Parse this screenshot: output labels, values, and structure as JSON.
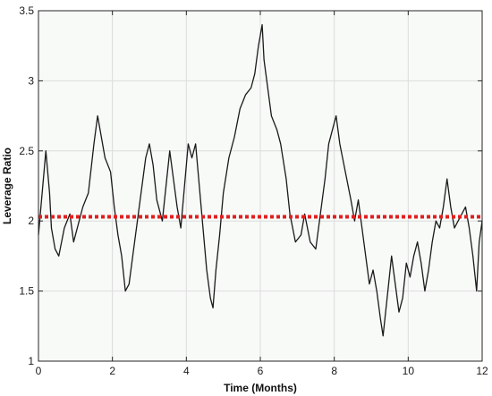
{
  "chart_data": {
    "type": "line",
    "title": "",
    "xlabel": "Time (Months)",
    "ylabel": "Leverage Ratio",
    "xlim": [
      0,
      12
    ],
    "ylim": [
      1,
      3.5
    ],
    "x_ticks": [
      0,
      2,
      4,
      6,
      8,
      10,
      12
    ],
    "x_tick_labels": [
      "0",
      "2",
      "4",
      "6",
      "8",
      "10",
      "12"
    ],
    "y_ticks": [
      1,
      1.5,
      2,
      2.5,
      3,
      3.5
    ],
    "y_tick_labels": [
      "1",
      "1.5",
      "2",
      "2.5",
      "3",
      "3.5"
    ],
    "grid": true,
    "legend": "none",
    "plot_background": "#f7faf7",
    "series": [
      {
        "style": "solid",
        "color": "#1a1a1a",
        "points": [
          [
            0.0,
            1.9
          ],
          [
            0.1,
            2.2
          ],
          [
            0.2,
            2.5
          ],
          [
            0.3,
            2.2
          ],
          [
            0.35,
            1.95
          ],
          [
            0.45,
            1.8
          ],
          [
            0.55,
            1.75
          ],
          [
            0.7,
            1.95
          ],
          [
            0.85,
            2.05
          ],
          [
            0.95,
            1.85
          ],
          [
            1.05,
            1.95
          ],
          [
            1.2,
            2.1
          ],
          [
            1.35,
            2.2
          ],
          [
            1.5,
            2.55
          ],
          [
            1.6,
            2.75
          ],
          [
            1.7,
            2.6
          ],
          [
            1.8,
            2.45
          ],
          [
            1.95,
            2.35
          ],
          [
            2.05,
            2.1
          ],
          [
            2.15,
            1.9
          ],
          [
            2.25,
            1.75
          ],
          [
            2.35,
            1.5
          ],
          [
            2.45,
            1.55
          ],
          [
            2.6,
            1.85
          ],
          [
            2.75,
            2.15
          ],
          [
            2.9,
            2.45
          ],
          [
            3.0,
            2.55
          ],
          [
            3.1,
            2.4
          ],
          [
            3.2,
            2.15
          ],
          [
            3.35,
            2.0
          ],
          [
            3.45,
            2.25
          ],
          [
            3.55,
            2.5
          ],
          [
            3.65,
            2.3
          ],
          [
            3.75,
            2.1
          ],
          [
            3.85,
            1.95
          ],
          [
            3.95,
            2.25
          ],
          [
            4.05,
            2.55
          ],
          [
            4.15,
            2.45
          ],
          [
            4.25,
            2.55
          ],
          [
            4.35,
            2.25
          ],
          [
            4.45,
            1.95
          ],
          [
            4.55,
            1.65
          ],
          [
            4.65,
            1.45
          ],
          [
            4.72,
            1.38
          ],
          [
            4.8,
            1.65
          ],
          [
            4.9,
            1.9
          ],
          [
            5.0,
            2.2
          ],
          [
            5.15,
            2.45
          ],
          [
            5.3,
            2.6
          ],
          [
            5.45,
            2.8
          ],
          [
            5.6,
            2.9
          ],
          [
            5.75,
            2.95
          ],
          [
            5.85,
            3.05
          ],
          [
            5.95,
            3.25
          ],
          [
            6.05,
            3.4
          ],
          [
            6.1,
            3.15
          ],
          [
            6.2,
            2.95
          ],
          [
            6.3,
            2.75
          ],
          [
            6.45,
            2.65
          ],
          [
            6.55,
            2.55
          ],
          [
            6.7,
            2.3
          ],
          [
            6.8,
            2.05
          ],
          [
            6.95,
            1.85
          ],
          [
            7.1,
            1.9
          ],
          [
            7.2,
            2.05
          ],
          [
            7.35,
            1.85
          ],
          [
            7.5,
            1.8
          ],
          [
            7.6,
            2.0
          ],
          [
            7.75,
            2.3
          ],
          [
            7.85,
            2.55
          ],
          [
            7.95,
            2.65
          ],
          [
            8.05,
            2.75
          ],
          [
            8.15,
            2.55
          ],
          [
            8.3,
            2.35
          ],
          [
            8.45,
            2.15
          ],
          [
            8.55,
            2.0
          ],
          [
            8.65,
            2.15
          ],
          [
            8.75,
            1.95
          ],
          [
            8.85,
            1.75
          ],
          [
            8.95,
            1.55
          ],
          [
            9.05,
            1.65
          ],
          [
            9.15,
            1.5
          ],
          [
            9.25,
            1.3
          ],
          [
            9.32,
            1.18
          ],
          [
            9.45,
            1.5
          ],
          [
            9.55,
            1.75
          ],
          [
            9.65,
            1.55
          ],
          [
            9.75,
            1.35
          ],
          [
            9.85,
            1.45
          ],
          [
            9.95,
            1.7
          ],
          [
            10.05,
            1.6
          ],
          [
            10.15,
            1.75
          ],
          [
            10.25,
            1.85
          ],
          [
            10.35,
            1.7
          ],
          [
            10.45,
            1.5
          ],
          [
            10.55,
            1.65
          ],
          [
            10.65,
            1.85
          ],
          [
            10.75,
            2.0
          ],
          [
            10.85,
            1.95
          ],
          [
            10.95,
            2.1
          ],
          [
            11.05,
            2.3
          ],
          [
            11.15,
            2.1
          ],
          [
            11.25,
            1.95
          ],
          [
            11.35,
            2.0
          ],
          [
            11.45,
            2.05
          ],
          [
            11.55,
            2.1
          ],
          [
            11.65,
            1.95
          ],
          [
            11.75,
            1.75
          ],
          [
            11.85,
            1.5
          ],
          [
            11.92,
            1.85
          ],
          [
            12.0,
            2.0
          ]
        ]
      },
      {
        "style": "dotted",
        "color": "#e01f1f",
        "points": [
          [
            0.0,
            2.03
          ],
          [
            12.0,
            2.03
          ]
        ]
      }
    ]
  }
}
